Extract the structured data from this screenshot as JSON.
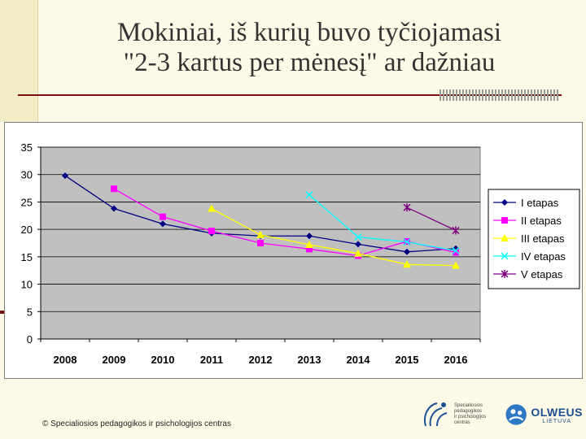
{
  "slide": {
    "title_line1": "Mokiniai, iš kurių buvo tyčiojamasi",
    "title_line2": "\"2-3 kartus per mėnesį\" ar dažniau",
    "footer": "© Specialiosios pedagogikos ir psichologijos centras",
    "logo_spc_text": [
      "Specialiosios",
      "pedagogikos",
      "ir psichologijos",
      "centras"
    ],
    "logo_olweus_word": "OLWEUS",
    "logo_olweus_sub": "LIETUVA"
  },
  "chart_data": {
    "type": "line",
    "categories": [
      "2008",
      "2009",
      "2010",
      "2011",
      "2012",
      "2013",
      "2014",
      "2015",
      "2016"
    ],
    "ylim": [
      0,
      35
    ],
    "yticks": [
      0,
      5,
      10,
      15,
      20,
      25,
      30,
      35
    ],
    "grid": true,
    "legend_position": "right",
    "plot_background": "#c0c0c0",
    "series": [
      {
        "name": "I etapas",
        "color": "#000080",
        "marker": "diamond",
        "values": [
          29.8,
          23.8,
          21.0,
          19.3,
          18.8,
          18.8,
          17.3,
          15.9,
          16.5
        ]
      },
      {
        "name": "II etapas",
        "color": "#ff00ff",
        "marker": "square",
        "values": [
          null,
          27.4,
          22.3,
          19.7,
          17.5,
          16.4,
          15.2,
          17.8,
          15.8
        ]
      },
      {
        "name": "III etapas",
        "color": "#ffff00",
        "marker": "triangle",
        "values": [
          null,
          null,
          null,
          23.8,
          19.0,
          17.2,
          15.6,
          13.6,
          13.4
        ]
      },
      {
        "name": "IV etapas",
        "color": "#00ffff",
        "marker": "x",
        "values": [
          null,
          null,
          null,
          null,
          null,
          26.3,
          18.6,
          17.7,
          16.1
        ]
      },
      {
        "name": "V etapas",
        "color": "#800080",
        "marker": "star",
        "values": [
          null,
          null,
          null,
          null,
          null,
          null,
          null,
          24.0,
          19.8
        ]
      }
    ]
  }
}
